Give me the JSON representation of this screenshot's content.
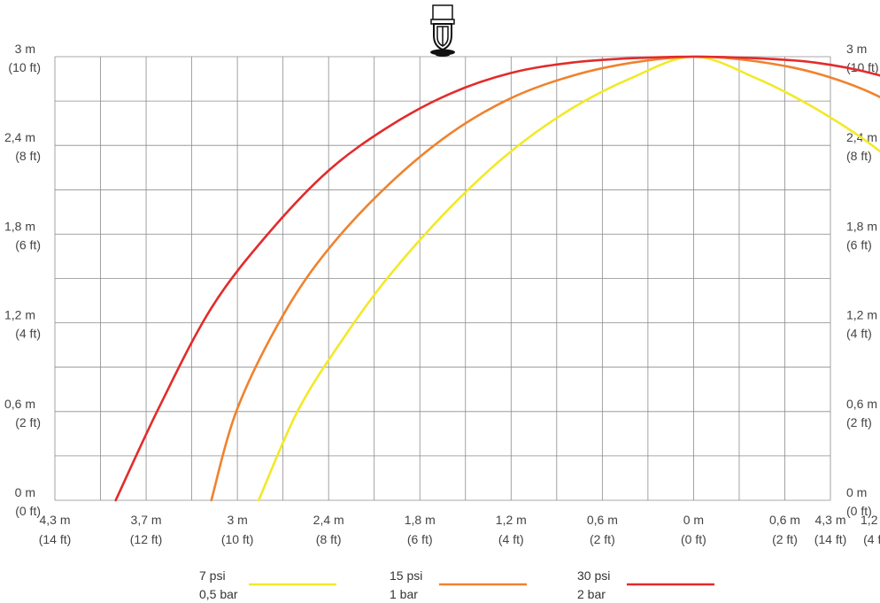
{
  "chart_data": {
    "type": "line",
    "title": "",
    "xlabel": "",
    "ylabel": "",
    "x_unit": "m",
    "y_unit": "m",
    "xlim": [
      -4.3,
      4.3
    ],
    "ylim": [
      0,
      3
    ],
    "grid": true,
    "x_ticks": [
      {
        "value": -4.3,
        "m": "4,3 m",
        "ft": "(14 ft)"
      },
      {
        "value": -3.7,
        "m": "3,7 m",
        "ft": "(12 ft)"
      },
      {
        "value": -3.0,
        "m": "3 m",
        "ft": "(10 ft)"
      },
      {
        "value": -2.4,
        "m": "2,4 m",
        "ft": "(8 ft)"
      },
      {
        "value": -1.8,
        "m": "1,8 m",
        "ft": "(6 ft)"
      },
      {
        "value": -1.2,
        "m": "1,2 m",
        "ft": "(4 ft)"
      },
      {
        "value": -0.6,
        "m": "0,6 m",
        "ft": "(2 ft)"
      },
      {
        "value": 0,
        "m": "0 m",
        "ft": "(0 ft)"
      },
      {
        "value": 0.6,
        "m": "0,6 m",
        "ft": "(2 ft)"
      },
      {
        "value": 1.2,
        "m": "1,2 m",
        "ft": "(4 ft)"
      },
      {
        "value": 1.8,
        "m": "1,8 m",
        "ft": "(6 ft)"
      },
      {
        "value": 2.4,
        "m": "2,4 m",
        "ft": "(8 ft)"
      },
      {
        "value": 3.0,
        "m": "3 m",
        "ft": "(10 ft)"
      },
      {
        "value": 3.7,
        "m": "3,7 m",
        "ft": "(12 ft)"
      },
      {
        "value": 4.3,
        "m": "4,3 m",
        "ft": "(14 ft)"
      }
    ],
    "y_ticks": [
      {
        "value": 0,
        "m": "0 m",
        "ft": "(0 ft)"
      },
      {
        "value": 0.6,
        "m": "0,6 m",
        "ft": "(2 ft)"
      },
      {
        "value": 1.2,
        "m": "1,2 m",
        "ft": "(4 ft)"
      },
      {
        "value": 1.8,
        "m": "1,8 m",
        "ft": "(6 ft)"
      },
      {
        "value": 2.4,
        "m": "2,4 m",
        "ft": "(8 ft)"
      },
      {
        "value": 3.0,
        "m": "3 m",
        "ft": "(10 ft)"
      }
    ],
    "series": [
      {
        "name": "7 psi",
        "name2": "0,5 bar",
        "color": "#f2e928",
        "points": [
          [
            -2.86,
            0.0
          ],
          [
            -2.6,
            0.61
          ],
          [
            -2.3,
            1.1
          ],
          [
            -2.0,
            1.52
          ],
          [
            -1.6,
            1.98
          ],
          [
            -1.2,
            2.36
          ],
          [
            -0.8,
            2.65
          ],
          [
            -0.4,
            2.86
          ],
          [
            0.0,
            3.0
          ],
          [
            0.4,
            2.86
          ],
          [
            0.8,
            2.65
          ],
          [
            1.2,
            2.38
          ],
          [
            1.6,
            2.02
          ],
          [
            2.0,
            1.55
          ],
          [
            2.4,
            0.99
          ],
          [
            2.8,
            0.33
          ],
          [
            3.0,
            0.0
          ]
        ]
      },
      {
        "name": "15 psi",
        "name2": "1 bar",
        "color": "#f0822e",
        "points": [
          [
            -3.2,
            0.0
          ],
          [
            -3.0,
            0.62
          ],
          [
            -2.7,
            1.25
          ],
          [
            -2.4,
            1.7
          ],
          [
            -2.0,
            2.14
          ],
          [
            -1.6,
            2.48
          ],
          [
            -1.2,
            2.72
          ],
          [
            -0.8,
            2.87
          ],
          [
            -0.4,
            2.96
          ],
          [
            0.0,
            3.0
          ],
          [
            0.4,
            2.97
          ],
          [
            0.8,
            2.89
          ],
          [
            1.2,
            2.74
          ],
          [
            1.6,
            2.5
          ],
          [
            2.0,
            2.15
          ],
          [
            2.4,
            1.7
          ],
          [
            2.8,
            1.12
          ],
          [
            3.1,
            0.58
          ],
          [
            3.3,
            0.0
          ]
        ]
      },
      {
        "name": "30 psi",
        "name2": "2 bar",
        "color": "#e32b2b",
        "points": [
          [
            -3.9,
            0.0
          ],
          [
            -3.6,
            0.63
          ],
          [
            -3.2,
            1.3
          ],
          [
            -2.8,
            1.8
          ],
          [
            -2.4,
            2.23
          ],
          [
            -2.0,
            2.53
          ],
          [
            -1.6,
            2.75
          ],
          [
            -1.2,
            2.89
          ],
          [
            -0.8,
            2.96
          ],
          [
            -0.4,
            2.99
          ],
          [
            0.0,
            3.0
          ],
          [
            0.4,
            2.99
          ],
          [
            0.8,
            2.96
          ],
          [
            1.2,
            2.88
          ],
          [
            1.6,
            2.74
          ],
          [
            2.0,
            2.52
          ],
          [
            2.4,
            2.22
          ],
          [
            2.8,
            1.82
          ],
          [
            3.2,
            1.28
          ],
          [
            3.6,
            0.6
          ],
          [
            3.9,
            0.0
          ]
        ]
      }
    ]
  }
}
